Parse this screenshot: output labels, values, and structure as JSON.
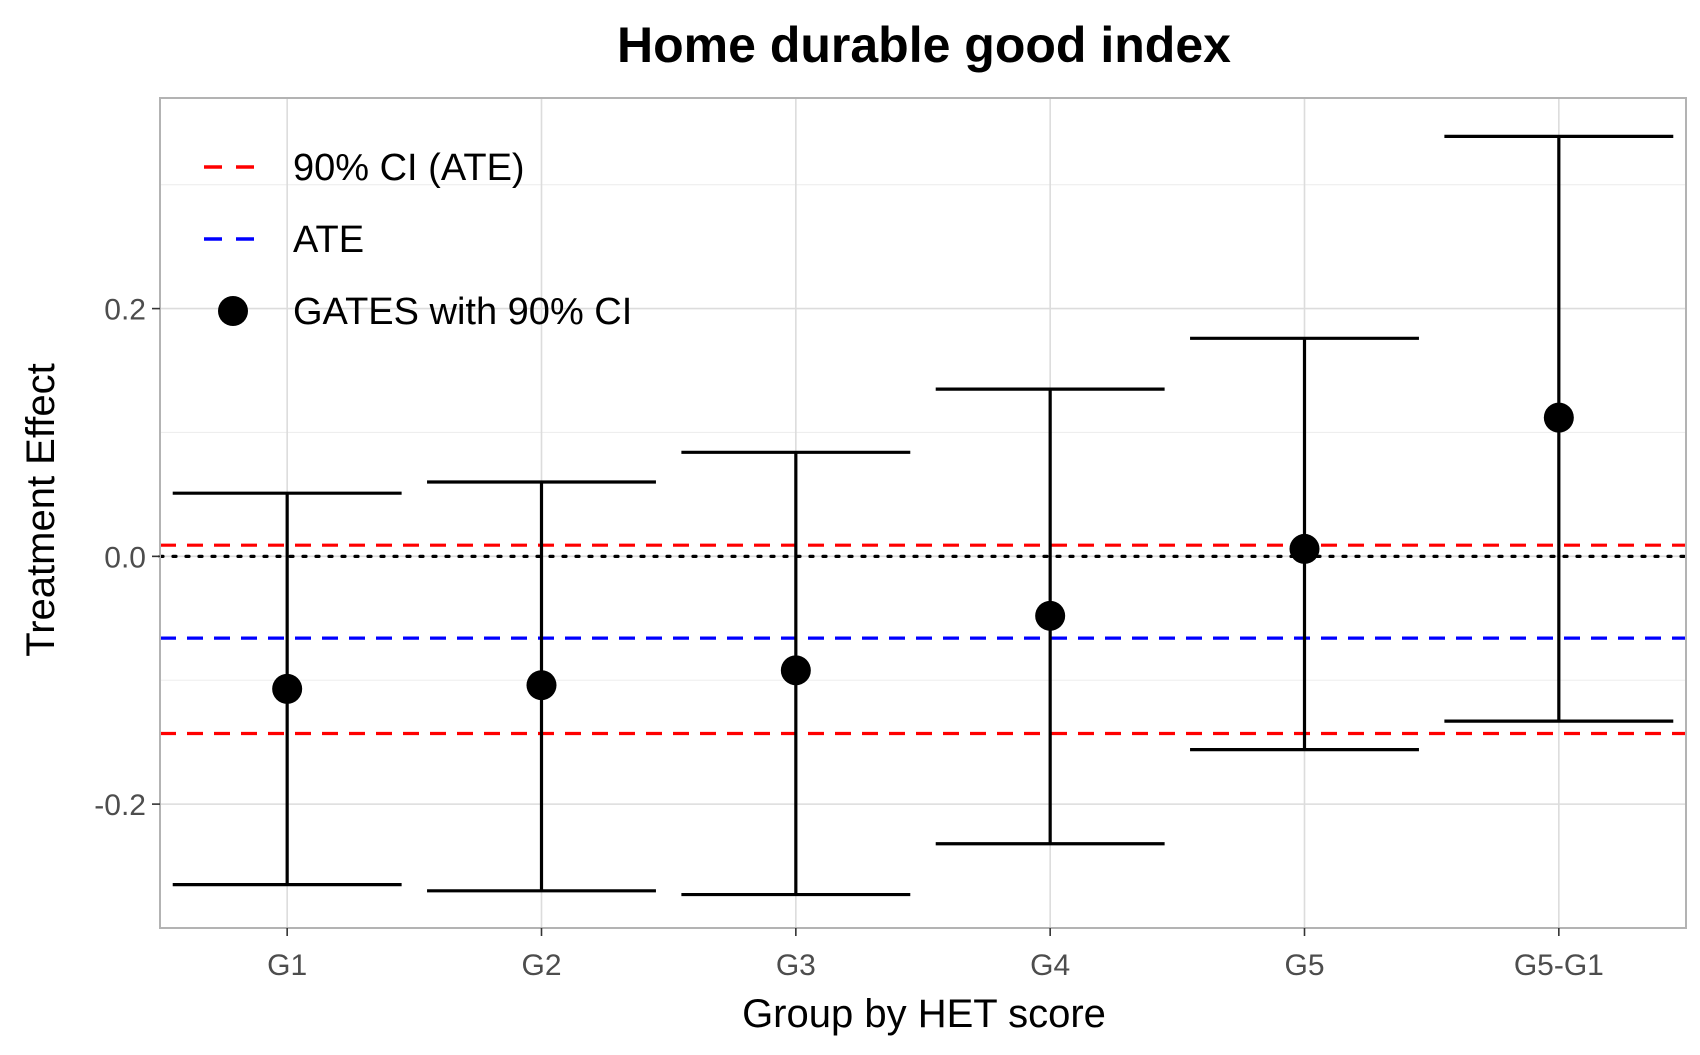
{
  "chart_data": {
    "type": "scatter",
    "title": "Home durable good index",
    "xlabel": "Group by HET score",
    "ylabel": "Treatment Effect",
    "categories": [
      "G1",
      "G2",
      "G3",
      "G4",
      "G5",
      "G5-G1"
    ],
    "ylim": [
      -0.3,
      0.37
    ],
    "yticks": [
      -0.2,
      0.0,
      0.2
    ],
    "ytick_labels": [
      "-0.2",
      "0.0",
      "0.2"
    ],
    "grid": true,
    "series": [
      {
        "name": "GATES with 90% CI",
        "estimate": [
          -0.107,
          -0.104,
          -0.092,
          -0.048,
          0.006,
          0.112
        ],
        "ci_lower": [
          -0.265,
          -0.27,
          -0.273,
          -0.232,
          -0.156,
          -0.133
        ],
        "ci_upper": [
          0.051,
          0.06,
          0.084,
          0.135,
          0.176,
          0.339
        ],
        "color": "#000000"
      }
    ],
    "reference_lines": [
      {
        "name": "ATE",
        "value": -0.066,
        "style": "dashed",
        "color": "#0000ff"
      },
      {
        "name": "90% CI (ATE)",
        "value": 0.009,
        "style": "dashed",
        "color": "#ff0000"
      },
      {
        "name": "90% CI (ATE)",
        "value": -0.143,
        "style": "dashed",
        "color": "#ff0000"
      },
      {
        "name": "zero",
        "value": 0.0,
        "style": "dotted",
        "color": "#000000"
      }
    ],
    "legend": {
      "position": "top-left",
      "entries": [
        {
          "label": "90% CI (ATE)",
          "symbol": "dashed-line",
          "color": "#ff0000"
        },
        {
          "label": "ATE",
          "symbol": "dashed-line",
          "color": "#0000ff"
        },
        {
          "label": "GATES with 90% CI",
          "symbol": "point",
          "color": "#000000"
        }
      ]
    }
  }
}
